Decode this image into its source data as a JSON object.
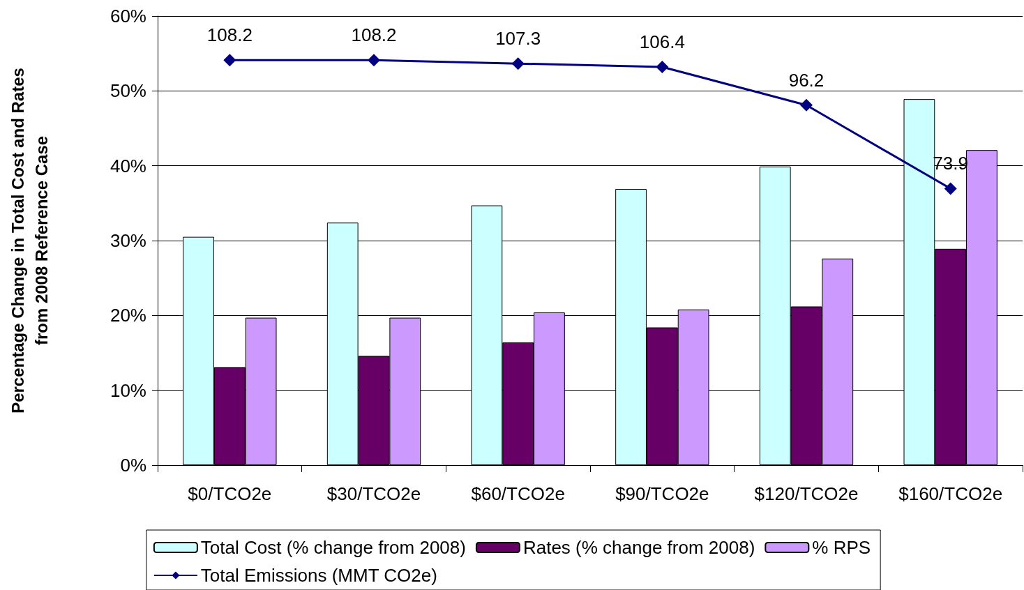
{
  "chart_data": {
    "type": "bar",
    "ylabel": "Percentage Change in Total Cost and Rates\nfrom 2008 Reference Case",
    "categories": [
      "$0/TCO2e",
      "$30/TCO2e",
      "$60/TCO2e",
      "$90/TCO2e",
      "$120/TCO2e",
      "$160/TCO2e"
    ],
    "series": [
      {
        "name": "Total Cost (% change from 2008)",
        "color": "#ccffff",
        "values": [
          30.5,
          32.4,
          34.7,
          36.9,
          39.9,
          48.9
        ]
      },
      {
        "name": "Rates (% change from 2008)",
        "color": "#660066",
        "values": [
          13.1,
          14.6,
          16.4,
          18.4,
          21.2,
          28.9
        ]
      },
      {
        "name": "% RPS",
        "color": "#cc99ff",
        "values": [
          19.7,
          19.7,
          20.4,
          20.8,
          27.6,
          42.1
        ]
      },
      {
        "name": "Total Emissions (MMT CO2e)",
        "type": "line",
        "axis": "y2",
        "color": "#000080",
        "marker": "diamond",
        "values": [
          108.2,
          108.2,
          107.3,
          106.4,
          96.2,
          73.9
        ],
        "value_labels": [
          "108.2",
          "108.2",
          "107.3",
          "106.4",
          "96.2",
          "73.9"
        ]
      }
    ],
    "ylim": [
      0,
      60
    ],
    "yticks": [
      {
        "value": 0,
        "label": "0%"
      },
      {
        "value": 10,
        "label": "10%"
      },
      {
        "value": 20,
        "label": "20%"
      },
      {
        "value": 30,
        "label": "30%"
      },
      {
        "value": 40,
        "label": "40%"
      },
      {
        "value": 50,
        "label": "50%"
      },
      {
        "value": 60,
        "label": "60%"
      }
    ],
    "y2lim": [
      0,
      120
    ],
    "grid": "y",
    "legend": "bottom"
  }
}
